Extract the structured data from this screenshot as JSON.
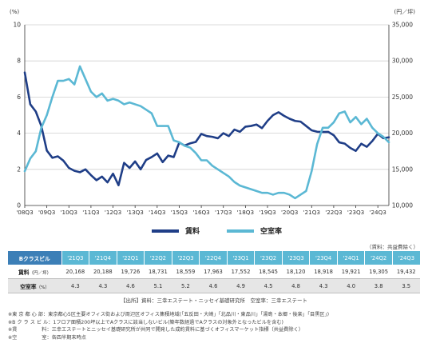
{
  "chart_data": {
    "type": "line",
    "y_left": {
      "unit": "(%)",
      "ticks": [
        "0",
        "2",
        "4",
        "6",
        "8",
        "10"
      ],
      "range": [
        0,
        10
      ]
    },
    "y_right": {
      "unit": "(円／坪)",
      "ticks": [
        "10,000",
        "15,000",
        "20,000",
        "25,000",
        "30,000",
        "35,000"
      ],
      "range": [
        10000,
        35000
      ]
    },
    "x_ticks": [
      "'08Q3",
      "'09Q3",
      "'10Q3",
      "'11Q3",
      "'12Q3",
      "'13Q3",
      "'14Q3",
      "'15Q3",
      "'16Q3",
      "'17Q3",
      "'18Q3",
      "'19Q3",
      "'20Q3",
      "'21Q3",
      "'22Q3",
      "'23Q3",
      "'24Q3"
    ],
    "series": [
      {
        "name": "賃料",
        "axis": "right",
        "color": "#1f3e87",
        "values": [
          28400,
          24000,
          23000,
          21000,
          17600,
          16600,
          16800,
          16200,
          15200,
          14800,
          14600,
          15000,
          14200,
          13500,
          14000,
          13200,
          14400,
          12800,
          15900,
          15200,
          16100,
          15000,
          16300,
          16700,
          17200,
          16000,
          16900,
          16700,
          18700,
          18300,
          18600,
          18800,
          19900,
          19600,
          19500,
          19300,
          20000,
          19600,
          20500,
          20200,
          20900,
          21000,
          21200,
          20700,
          21700,
          22500,
          22900,
          22400,
          22000,
          21700,
          21600,
          21000,
          20400,
          20200,
          20168,
          20188,
          19726,
          18731,
          18559,
          17963,
          17552,
          18545,
          18120,
          18918,
          19921,
          19305,
          19432
        ]
      },
      {
        "name": "空室率",
        "axis": "left",
        "color": "#5bb8d4",
        "values": [
          1.9,
          2.6,
          3.0,
          4.3,
          5.0,
          6.0,
          6.9,
          6.9,
          7.0,
          6.7,
          7.7,
          7.0,
          6.3,
          6.0,
          6.2,
          5.8,
          5.9,
          5.8,
          5.6,
          5.7,
          5.6,
          5.5,
          5.3,
          5.1,
          4.4,
          4.4,
          4.4,
          3.6,
          3.5,
          3.3,
          3.2,
          2.9,
          2.5,
          2.5,
          2.2,
          2.0,
          1.8,
          1.6,
          1.3,
          1.1,
          1.0,
          0.9,
          0.8,
          0.7,
          0.7,
          0.6,
          0.7,
          0.7,
          0.6,
          0.4,
          0.6,
          0.8,
          1.9,
          3.4,
          4.3,
          4.3,
          4.6,
          5.1,
          5.2,
          4.6,
          4.9,
          4.5,
          4.8,
          4.3,
          4.0,
          3.8,
          3.5
        ]
      }
    ]
  },
  "legend": [
    {
      "label": "賃料",
      "color": "#1f3e87"
    },
    {
      "label": "空室率",
      "color": "#5bb8d4"
    }
  ],
  "source_top": "（賃料：共益費除く）",
  "table": {
    "header_label": "Bクラスビル",
    "columns": [
      "'21Q3",
      "'21Q4",
      "'22Q1",
      "'22Q2",
      "'22Q3",
      "'22Q4",
      "'23Q1",
      "'23Q2",
      "'23Q3",
      "'23Q4",
      "'24Q1",
      "'24Q2",
      "'24Q3"
    ],
    "rows": [
      {
        "label": "賃料",
        "unit": "（円／坪）",
        "values": [
          "20,168",
          "20,188",
          "19,726",
          "18,731",
          "18,559",
          "17,963",
          "17,552",
          "18,545",
          "18,120",
          "18,918",
          "19,921",
          "19,305",
          "19,432"
        ]
      },
      {
        "label": "空室率",
        "unit": "（%）",
        "values": [
          "4.3",
          "4.3",
          "4.6",
          "5.1",
          "5.2",
          "4.6",
          "4.9",
          "4.5",
          "4.8",
          "4.3",
          "4.0",
          "3.8",
          "3.5"
        ]
      }
    ]
  },
  "source_bottom": "【出所】資料：三幸エステート・ニッセイ基礎研究所　空室率：三幸エステート",
  "footnotes": [
    "※東 京 都 心 部：東京都心5区主要オフィス街および周辺区オフィス集積地域(「五反田・大崎」「北品川・東品川」「湯島・本郷・後楽」「目黒区」)",
    "※B ク ラ ス ビ ル：1フロア面積200坪以上でAクラスに該当しないビル(築年数経過でAクラスの対象外となったビルを含む)",
    "※賃　　　　　料：三幸エステートとニッセイ基礎研究所が共同で開発した成約賃料に基づくオフィスマーケット指標（共益費除く）",
    "※空　　　　　室：各四半期末時点"
  ]
}
